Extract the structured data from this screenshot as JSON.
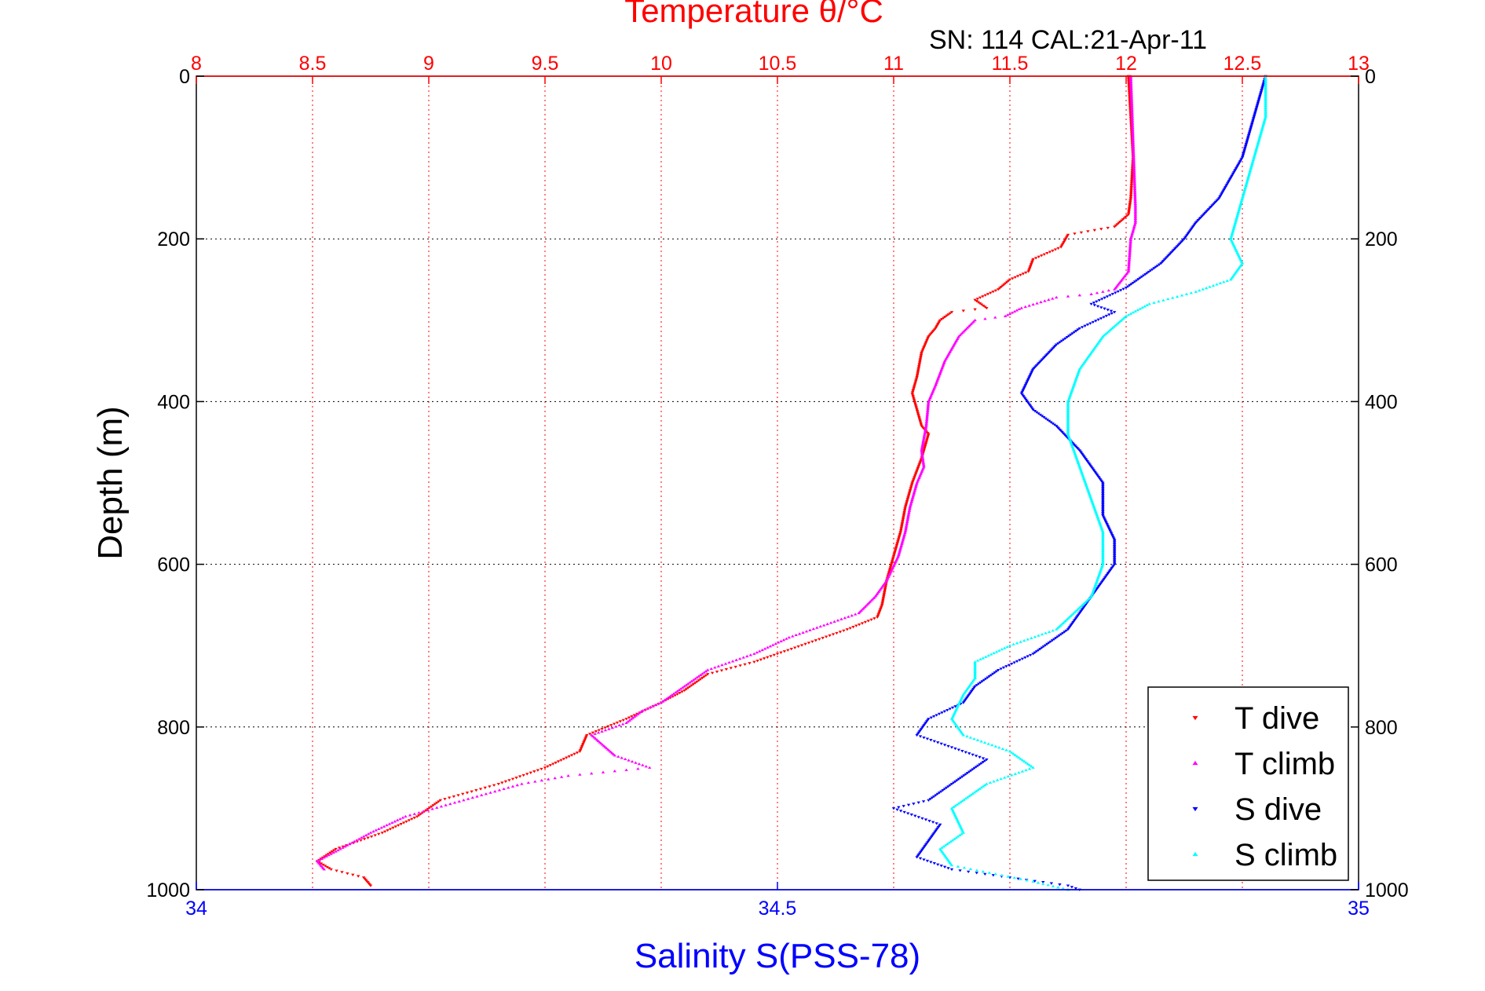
{
  "chart_data": {
    "type": "scatter",
    "title": "Temperature θ/°C",
    "subtitle": "SN: 114  CAL:21-Apr-11",
    "ylabel": "Depth (m)",
    "xlabel": "Salinity S(PSS-78)",
    "temperature_axis": {
      "label": "Temperature θ/°C",
      "range": [
        8,
        13
      ],
      "ticks": [
        "8",
        "8.5",
        "9",
        "9.5",
        "10",
        "10.5",
        "11",
        "11.5",
        "12",
        "12.5",
        "13"
      ],
      "color": "#ff0000"
    },
    "salinity_axis": {
      "label": "Salinity S(PSS-78)",
      "range": [
        34,
        35
      ],
      "ticks": [
        "34",
        "34.5",
        "35"
      ],
      "color": "#0000ff"
    },
    "depth_axis": {
      "range": [
        0,
        1000
      ],
      "reversed": true,
      "ticks": [
        "0",
        "200",
        "400",
        "600",
        "800",
        "1000"
      ]
    },
    "grid": true,
    "legend_placement": "bottom-right",
    "series": [
      {
        "name": "T dive",
        "axis": "temperature",
        "color": "#ff0000",
        "marker": "triangle-down",
        "points": [
          [
            0,
            12.01
          ],
          [
            50,
            12.02
          ],
          [
            100,
            12.03
          ],
          [
            150,
            12.02
          ],
          [
            170,
            12.01
          ],
          [
            185,
            11.95
          ],
          [
            195,
            11.75
          ],
          [
            210,
            11.72
          ],
          [
            225,
            11.6
          ],
          [
            240,
            11.58
          ],
          [
            250,
            11.5
          ],
          [
            262,
            11.45
          ],
          [
            275,
            11.35
          ],
          [
            285,
            11.4
          ],
          [
            290,
            11.25
          ],
          [
            300,
            11.2
          ],
          [
            310,
            11.18
          ],
          [
            320,
            11.15
          ],
          [
            340,
            11.12
          ],
          [
            370,
            11.1
          ],
          [
            390,
            11.08
          ],
          [
            410,
            11.1
          ],
          [
            430,
            11.12
          ],
          [
            440,
            11.15
          ],
          [
            470,
            11.12
          ],
          [
            500,
            11.08
          ],
          [
            530,
            11.05
          ],
          [
            560,
            11.03
          ],
          [
            590,
            11.0
          ],
          [
            620,
            10.97
          ],
          [
            650,
            10.95
          ],
          [
            665,
            10.93
          ],
          [
            680,
            10.8
          ],
          [
            695,
            10.65
          ],
          [
            710,
            10.5
          ],
          [
            720,
            10.4
          ],
          [
            735,
            10.2
          ],
          [
            755,
            10.1
          ],
          [
            770,
            10.0
          ],
          [
            790,
            9.85
          ],
          [
            810,
            9.68
          ],
          [
            830,
            9.65
          ],
          [
            850,
            9.5
          ],
          [
            870,
            9.3
          ],
          [
            890,
            9.05
          ],
          [
            910,
            8.95
          ],
          [
            930,
            8.8
          ],
          [
            950,
            8.6
          ],
          [
            965,
            8.52
          ],
          [
            975,
            8.58
          ],
          [
            980,
            8.65
          ],
          [
            985,
            8.72
          ],
          [
            995,
            8.75
          ]
        ]
      },
      {
        "name": "T climb",
        "axis": "temperature",
        "color": "#ff00ff",
        "marker": "triangle-up",
        "points": [
          [
            0,
            12.02
          ],
          [
            80,
            12.03
          ],
          [
            160,
            12.04
          ],
          [
            180,
            12.04
          ],
          [
            200,
            12.02
          ],
          [
            240,
            12.01
          ],
          [
            262,
            11.95
          ],
          [
            268,
            11.85
          ],
          [
            272,
            11.7
          ],
          [
            285,
            11.55
          ],
          [
            295,
            11.48
          ],
          [
            300,
            11.35
          ],
          [
            320,
            11.28
          ],
          [
            350,
            11.22
          ],
          [
            380,
            11.18
          ],
          [
            400,
            11.15
          ],
          [
            430,
            11.14
          ],
          [
            460,
            11.12
          ],
          [
            480,
            11.13
          ],
          [
            500,
            11.1
          ],
          [
            530,
            11.07
          ],
          [
            560,
            11.05
          ],
          [
            590,
            11.02
          ],
          [
            620,
            10.97
          ],
          [
            640,
            10.92
          ],
          [
            660,
            10.85
          ],
          [
            690,
            10.55
          ],
          [
            710,
            10.4
          ],
          [
            730,
            10.2
          ],
          [
            750,
            10.1
          ],
          [
            770,
            10.0
          ],
          [
            780,
            9.92
          ],
          [
            795,
            9.85
          ],
          [
            810,
            9.7
          ],
          [
            835,
            9.8
          ],
          [
            850,
            9.95
          ],
          [
            860,
            9.6
          ],
          [
            870,
            9.4
          ],
          [
            890,
            9.15
          ],
          [
            910,
            8.9
          ],
          [
            930,
            8.75
          ],
          [
            950,
            8.62
          ],
          [
            965,
            8.52
          ],
          [
            975,
            8.55
          ]
        ]
      },
      {
        "name": "S dive",
        "axis": "salinity",
        "color": "#0000ff",
        "marker": "triangle-down",
        "points": [
          [
            0,
            34.92
          ],
          [
            50,
            34.91
          ],
          [
            100,
            34.9
          ],
          [
            150,
            34.88
          ],
          [
            180,
            34.86
          ],
          [
            200,
            34.85
          ],
          [
            230,
            34.83
          ],
          [
            260,
            34.8
          ],
          [
            280,
            34.77
          ],
          [
            290,
            34.79
          ],
          [
            310,
            34.76
          ],
          [
            330,
            34.74
          ],
          [
            360,
            34.72
          ],
          [
            390,
            34.71
          ],
          [
            410,
            34.72
          ],
          [
            430,
            34.74
          ],
          [
            460,
            34.76
          ],
          [
            500,
            34.78
          ],
          [
            540,
            34.78
          ],
          [
            570,
            34.79
          ],
          [
            600,
            34.79
          ],
          [
            640,
            34.77
          ],
          [
            680,
            34.75
          ],
          [
            710,
            34.72
          ],
          [
            730,
            34.69
          ],
          [
            750,
            34.67
          ],
          [
            770,
            34.66
          ],
          [
            790,
            34.63
          ],
          [
            810,
            34.62
          ],
          [
            840,
            34.68
          ],
          [
            870,
            34.65
          ],
          [
            890,
            34.63
          ],
          [
            900,
            34.6
          ],
          [
            920,
            34.64
          ],
          [
            940,
            34.63
          ],
          [
            960,
            34.62
          ],
          [
            975,
            34.65
          ],
          [
            985,
            34.7
          ],
          [
            995,
            34.75
          ],
          [
            1000,
            34.76
          ]
        ]
      },
      {
        "name": "S climb",
        "axis": "salinity",
        "color": "#00ffff",
        "marker": "triangle-up",
        "points": [
          [
            0,
            34.92
          ],
          [
            50,
            34.92
          ],
          [
            100,
            34.91
          ],
          [
            150,
            34.9
          ],
          [
            200,
            34.89
          ],
          [
            230,
            34.9
          ],
          [
            250,
            34.89
          ],
          [
            265,
            34.86
          ],
          [
            280,
            34.82
          ],
          [
            295,
            34.8
          ],
          [
            320,
            34.78
          ],
          [
            360,
            34.76
          ],
          [
            400,
            34.75
          ],
          [
            440,
            34.75
          ],
          [
            480,
            34.76
          ],
          [
            520,
            34.77
          ],
          [
            560,
            34.78
          ],
          [
            600,
            34.78
          ],
          [
            640,
            34.77
          ],
          [
            680,
            34.74
          ],
          [
            700,
            34.7
          ],
          [
            720,
            34.67
          ],
          [
            740,
            34.67
          ],
          [
            760,
            34.66
          ],
          [
            790,
            34.65
          ],
          [
            810,
            34.66
          ],
          [
            830,
            34.7
          ],
          [
            850,
            34.72
          ],
          [
            870,
            34.68
          ],
          [
            900,
            34.65
          ],
          [
            930,
            34.66
          ],
          [
            950,
            34.64
          ],
          [
            970,
            34.65
          ],
          [
            990,
            34.72
          ],
          [
            1000,
            34.75
          ]
        ]
      }
    ]
  }
}
